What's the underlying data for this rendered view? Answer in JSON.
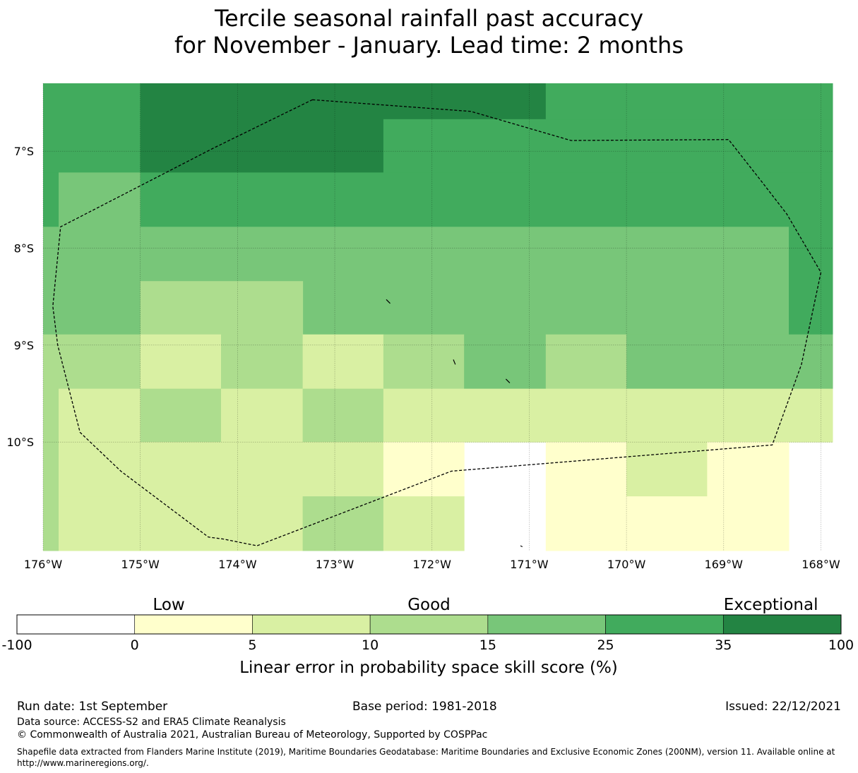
{
  "title": {
    "line1": "Tercile seasonal rainfall past accuracy",
    "line2": "for November - January. Lead time: 2 months"
  },
  "map": {
    "lon_range": [
      -176.0,
      -167.88
    ],
    "lat_range": [
      -11.12,
      -6.3
    ],
    "lon_ticks": [
      {
        "value": -176,
        "label": "176°W"
      },
      {
        "value": -175,
        "label": "175°W"
      },
      {
        "value": -174,
        "label": "174°W"
      },
      {
        "value": -173,
        "label": "173°W"
      },
      {
        "value": -172,
        "label": "172°W"
      },
      {
        "value": -171,
        "label": "171°W"
      },
      {
        "value": -170,
        "label": "170°W"
      },
      {
        "value": -169,
        "label": "169°W"
      },
      {
        "value": -168,
        "label": "168°W"
      }
    ],
    "lat_ticks": [
      {
        "value": -7,
        "label": "7°S"
      },
      {
        "value": -8,
        "label": "8°S"
      },
      {
        "value": -9,
        "label": "9°S"
      },
      {
        "value": -10,
        "label": "10°S"
      }
    ],
    "grid": true,
    "class_colors": [
      "#ffffff",
      "#ffffcc",
      "#d9f0a3",
      "#addd8e",
      "#78c679",
      "#41ab5d",
      "#238443"
    ],
    "cells": [
      {
        "lon": [
          -176.0,
          -175.0
        ],
        "lat": [
          -6.3,
          -7.22
        ],
        "class": 5
      },
      {
        "lon": [
          -175.0,
          -172.5
        ],
        "lat": [
          -6.3,
          -7.22
        ],
        "class": 6
      },
      {
        "lon": [
          -172.5,
          -170.83
        ],
        "lat": [
          -6.3,
          -6.67
        ],
        "class": 6
      },
      {
        "lon": [
          -172.5,
          -167.88
        ],
        "lat": [
          -6.67,
          -7.22
        ],
        "class": 5
      },
      {
        "lon": [
          -170.83,
          -167.88
        ],
        "lat": [
          -6.3,
          -6.67
        ],
        "class": 5
      },
      {
        "lon": [
          -176.0,
          -175.84
        ],
        "lat": [
          -7.22,
          -7.78
        ],
        "class": 5
      },
      {
        "lon": [
          -175.84,
          -175.0
        ],
        "lat": [
          -7.22,
          -7.78
        ],
        "class": 4
      },
      {
        "lon": [
          -175.0,
          -167.88
        ],
        "lat": [
          -7.22,
          -7.78
        ],
        "class": 5
      },
      {
        "lon": [
          -176.0,
          -168.33
        ],
        "lat": [
          -7.78,
          -8.89
        ],
        "class": 4
      },
      {
        "lon": [
          -168.33,
          -167.88
        ],
        "lat": [
          -7.78,
          -8.89
        ],
        "class": 5
      },
      {
        "lon": [
          -175.0,
          -173.33
        ],
        "lat": [
          -8.34,
          -8.89
        ],
        "class": 3
      },
      {
        "lon": [
          -176.0,
          -175.0
        ],
        "lat": [
          -8.89,
          -9.45
        ],
        "class": 3
      },
      {
        "lon": [
          -175.0,
          -174.17
        ],
        "lat": [
          -8.89,
          -9.45
        ],
        "class": 2
      },
      {
        "lon": [
          -174.17,
          -173.33
        ],
        "lat": [
          -8.89,
          -9.45
        ],
        "class": 3
      },
      {
        "lon": [
          -173.33,
          -172.5
        ],
        "lat": [
          -8.89,
          -9.45
        ],
        "class": 2
      },
      {
        "lon": [
          -172.5,
          -171.67
        ],
        "lat": [
          -8.89,
          -9.45
        ],
        "class": 3
      },
      {
        "lon": [
          -171.67,
          -170.83
        ],
        "lat": [
          -8.89,
          -9.45
        ],
        "class": 4
      },
      {
        "lon": [
          -170.83,
          -170.0
        ],
        "lat": [
          -8.89,
          -9.45
        ],
        "class": 3
      },
      {
        "lon": [
          -170.0,
          -167.88
        ],
        "lat": [
          -8.89,
          -9.45
        ],
        "class": 4
      },
      {
        "lon": [
          -176.0,
          -175.84
        ],
        "lat": [
          -9.45,
          -11.12
        ],
        "class": 3
      },
      {
        "lon": [
          -175.84,
          -175.0
        ],
        "lat": [
          -9.45,
          -10.0
        ],
        "class": 2
      },
      {
        "lon": [
          -175.0,
          -174.17
        ],
        "lat": [
          -9.45,
          -10.0
        ],
        "class": 3
      },
      {
        "lon": [
          -174.17,
          -173.33
        ],
        "lat": [
          -9.45,
          -10.0
        ],
        "class": 2
      },
      {
        "lon": [
          -173.33,
          -172.5
        ],
        "lat": [
          -9.45,
          -10.0
        ],
        "class": 3
      },
      {
        "lon": [
          -172.5,
          -167.88
        ],
        "lat": [
          -9.45,
          -10.0
        ],
        "class": 2
      },
      {
        "lon": [
          -175.84,
          -172.5
        ],
        "lat": [
          -10.0,
          -10.56
        ],
        "class": 2
      },
      {
        "lon": [
          -172.5,
          -171.67
        ],
        "lat": [
          -10.0,
          -10.56
        ],
        "class": 1
      },
      {
        "lon": [
          -175.84,
          -173.33
        ],
        "lat": [
          -10.56,
          -11.12
        ],
        "class": 2
      },
      {
        "lon": [
          -173.33,
          -172.5
        ],
        "lat": [
          -10.56,
          -11.12
        ],
        "class": 3
      },
      {
        "lon": [
          -172.5,
          -171.67
        ],
        "lat": [
          -10.56,
          -11.12
        ],
        "class": 2
      },
      {
        "lon": [
          -170.83,
          -170.0
        ],
        "lat": [
          -10.0,
          -11.12
        ],
        "class": 1
      },
      {
        "lon": [
          -170.0,
          -169.17
        ],
        "lat": [
          -10.0,
          -10.56
        ],
        "class": 2
      },
      {
        "lon": [
          -170.0,
          -169.17
        ],
        "lat": [
          -10.56,
          -11.12
        ],
        "class": 1
      },
      {
        "lon": [
          -169.17,
          -168.33
        ],
        "lat": [
          -10.0,
          -11.12
        ],
        "class": 1
      }
    ],
    "eez_boundary": [
      [
        -173.23,
        -6.47
      ],
      [
        -171.6,
        -6.59
      ],
      [
        -170.57,
        -6.89
      ],
      [
        -168.95,
        -6.88
      ],
      [
        -168.62,
        -7.3
      ],
      [
        -168.35,
        -7.65
      ],
      [
        -168.0,
        -8.25
      ],
      [
        -168.2,
        -9.2
      ],
      [
        -168.5,
        -10.03
      ],
      [
        -171.8,
        -10.3
      ],
      [
        -173.8,
        -11.07
      ],
      [
        -174.15,
        -11.0
      ],
      [
        -174.3,
        -10.98
      ],
      [
        -175.2,
        -10.3
      ],
      [
        -175.62,
        -9.9
      ],
      [
        -175.85,
        -9.0
      ],
      [
        -175.9,
        -8.6
      ],
      [
        -175.82,
        -7.78
      ],
      [
        -174.25,
        -6.97
      ],
      [
        -173.23,
        -6.47
      ]
    ],
    "islands": [
      [
        [
          -172.47,
          -8.53
        ],
        [
          -172.43,
          -8.57
        ]
      ],
      [
        [
          -171.78,
          -9.15
        ],
        [
          -171.76,
          -9.2
        ]
      ],
      [
        [
          -171.24,
          -9.35
        ],
        [
          -171.2,
          -9.39
        ]
      ],
      [
        [
          -171.09,
          -11.07
        ],
        [
          -171.07,
          -11.08
        ]
      ]
    ]
  },
  "legend": {
    "labels": [
      "Low",
      "Good",
      "Exceptional"
    ],
    "boundaries": [
      -100,
      0,
      5,
      10,
      15,
      25,
      35,
      100
    ],
    "tick_labels": [
      "-100",
      "0",
      "5",
      "10",
      "15",
      "25",
      "35",
      "100"
    ],
    "xlabel": "Linear error in probability space skill score (%)"
  },
  "footer": {
    "run_date": "Run date: 1st September",
    "base_period": "Base period: 1981-2018",
    "issued": "Issued: 22/12/2021",
    "data_source": "Data source: ACCESS-S2 and ERA5 Climate Reanalysis",
    "copyright": "© Commonwealth of Australia 2021, Australian Bureau of Meteorology, Supported by COSPPac",
    "shapefile": "Shapefile data extracted from Flanders Marine Institute (2019), Maritime Boundaries Geodatabase: Maritime Boundaries and Exclusive Economic Zones (200NM), version 11. Available online at http://www.marineregions.org/."
  }
}
